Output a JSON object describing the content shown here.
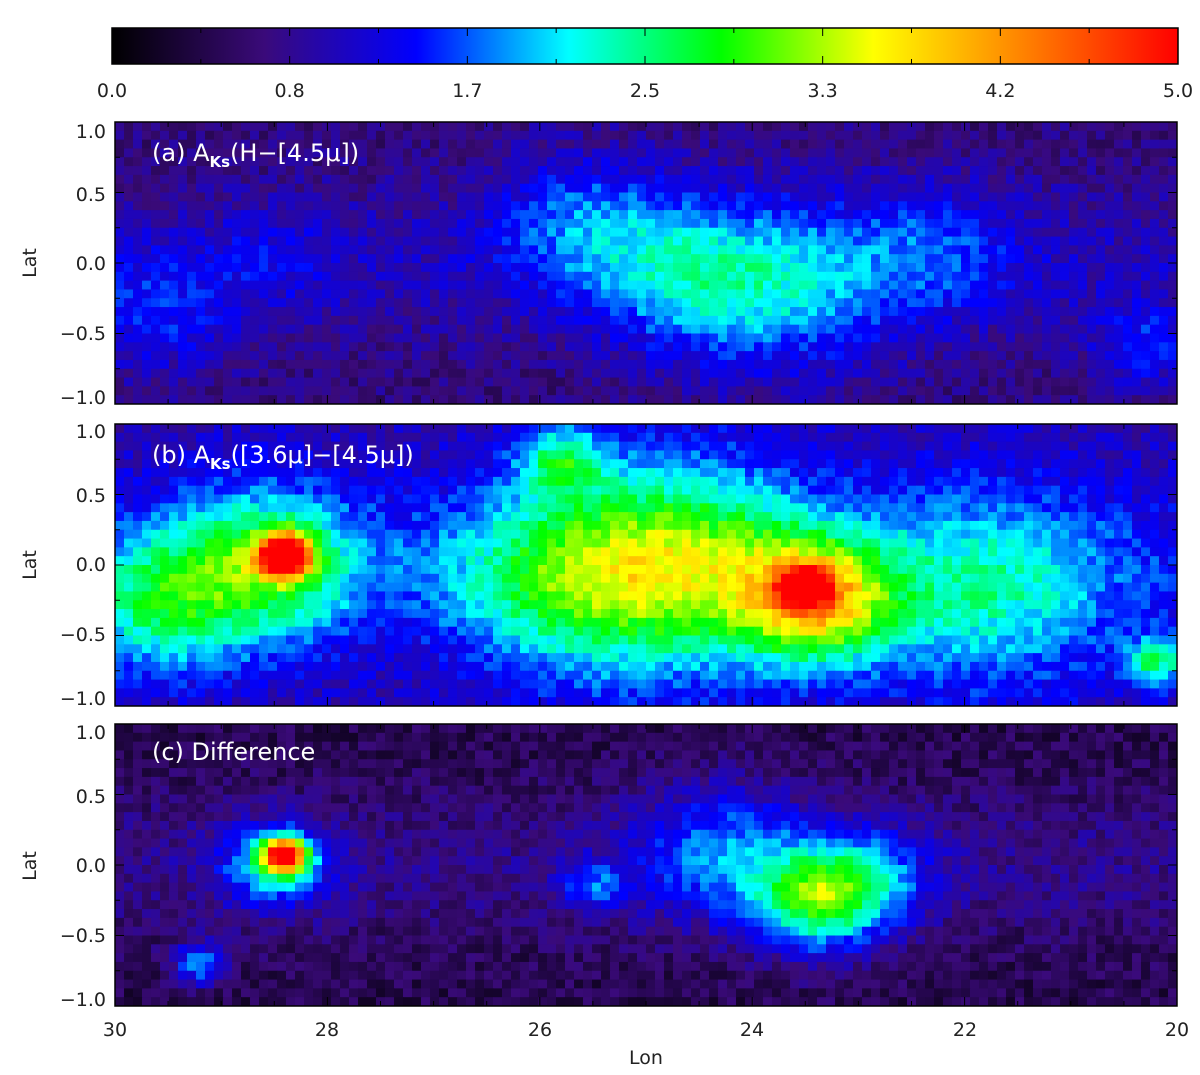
{
  "chart_data": [
    {
      "type": "colorbar",
      "colormap": [
        "#000000",
        "#3a0a7a",
        "#0000ff",
        "#00ffff",
        "#00ff00",
        "#ffff00",
        "#ff8000",
        "#ff0000"
      ],
      "range": [
        0.0,
        5.0
      ],
      "tick_labels": [
        "0.0",
        "0.8",
        "1.7",
        "2.5",
        "3.3",
        "4.2",
        "5.0"
      ]
    },
    {
      "type": "heatmap",
      "panel": "a",
      "label_prefix": "(a) A",
      "label_sub": "Ks",
      "label_suffix": "(H−[4.5μ])",
      "xlabel": "",
      "ylabel": "Lat",
      "xlim": [
        30,
        20
      ],
      "ylim": [
        -1.0,
        1.0
      ],
      "y_tick_labels": [
        "1.0",
        "0.5",
        "0.0",
        "−0.5",
        "−1.0"
      ],
      "background_level": 0.7,
      "features": [
        {
          "lon": 28.5,
          "lat": 0.05,
          "value": 1.0,
          "width": 0.6
        },
        {
          "lon": 24.6,
          "lat": -0.1,
          "value": 1.7,
          "width": 0.9
        },
        {
          "lon": 23.6,
          "lat": -0.2,
          "value": 1.6,
          "width": 1.0
        },
        {
          "lon": 25.6,
          "lat": 0.3,
          "value": 1.5,
          "width": 0.8
        },
        {
          "lon": 22.3,
          "lat": 0.1,
          "value": 1.3,
          "width": 0.8
        },
        {
          "lon": 29.6,
          "lat": -0.4,
          "value": 1.3,
          "width": 0.7
        },
        {
          "lon": 20.3,
          "lat": -0.6,
          "value": 1.4,
          "width": 0.5
        }
      ]
    },
    {
      "type": "heatmap",
      "panel": "b",
      "label_prefix": "(b) A",
      "label_sub": "Ks",
      "label_suffix": "([3.6μ]−[4.5μ])",
      "xlabel": "",
      "ylabel": "Lat",
      "xlim": [
        30,
        20
      ],
      "ylim": [
        -1.0,
        1.0
      ],
      "y_tick_labels": [
        "1.0",
        "0.5",
        "0.0",
        "−0.5",
        "−1.0"
      ],
      "background_level": 1.0,
      "features": [
        {
          "lon": 28.4,
          "lat": 0.07,
          "value": 4.8,
          "width": 0.25
        },
        {
          "lon": 28.6,
          "lat": 0.0,
          "value": 2.6,
          "width": 0.9
        },
        {
          "lon": 29.6,
          "lat": -0.3,
          "value": 2.2,
          "width": 0.8
        },
        {
          "lon": 24.6,
          "lat": 0.0,
          "value": 2.8,
          "width": 1.2
        },
        {
          "lon": 23.4,
          "lat": -0.25,
          "value": 3.4,
          "width": 0.7
        },
        {
          "lon": 23.5,
          "lat": -0.15,
          "value": 4.3,
          "width": 0.2
        },
        {
          "lon": 25.8,
          "lat": -0.1,
          "value": 2.3,
          "width": 1.1
        },
        {
          "lon": 21.8,
          "lat": -0.2,
          "value": 2.1,
          "width": 1.2
        },
        {
          "lon": 20.2,
          "lat": -0.7,
          "value": 2.4,
          "width": 0.3
        },
        {
          "lon": 25.8,
          "lat": 0.75,
          "value": 2.3,
          "width": 0.4
        }
      ]
    },
    {
      "type": "heatmap",
      "panel": "c",
      "label": "(c) Difference",
      "xlabel": "Lon",
      "ylabel": "Lat",
      "xlim": [
        30,
        20
      ],
      "ylim": [
        -1.0,
        1.0
      ],
      "y_tick_labels": [
        "1.0",
        "0.5",
        "0.0",
        "−0.5",
        "−1.0"
      ],
      "x_tick_labels": [
        "30",
        "28",
        "26",
        "24",
        "22",
        "20"
      ],
      "background_level": 0.45,
      "features": [
        {
          "lon": 28.4,
          "lat": 0.07,
          "value": 4.6,
          "width": 0.2
        },
        {
          "lon": 28.5,
          "lat": 0.0,
          "value": 1.9,
          "width": 0.5
        },
        {
          "lon": 23.4,
          "lat": -0.25,
          "value": 2.4,
          "width": 0.6
        },
        {
          "lon": 24.3,
          "lat": 0.1,
          "value": 1.5,
          "width": 0.8
        },
        {
          "lon": 22.9,
          "lat": -0.1,
          "value": 1.5,
          "width": 0.6
        },
        {
          "lon": 29.2,
          "lat": -0.7,
          "value": 1.8,
          "width": 0.25
        },
        {
          "lon": 25.5,
          "lat": -0.15,
          "value": 1.4,
          "width": 0.3
        }
      ]
    }
  ]
}
